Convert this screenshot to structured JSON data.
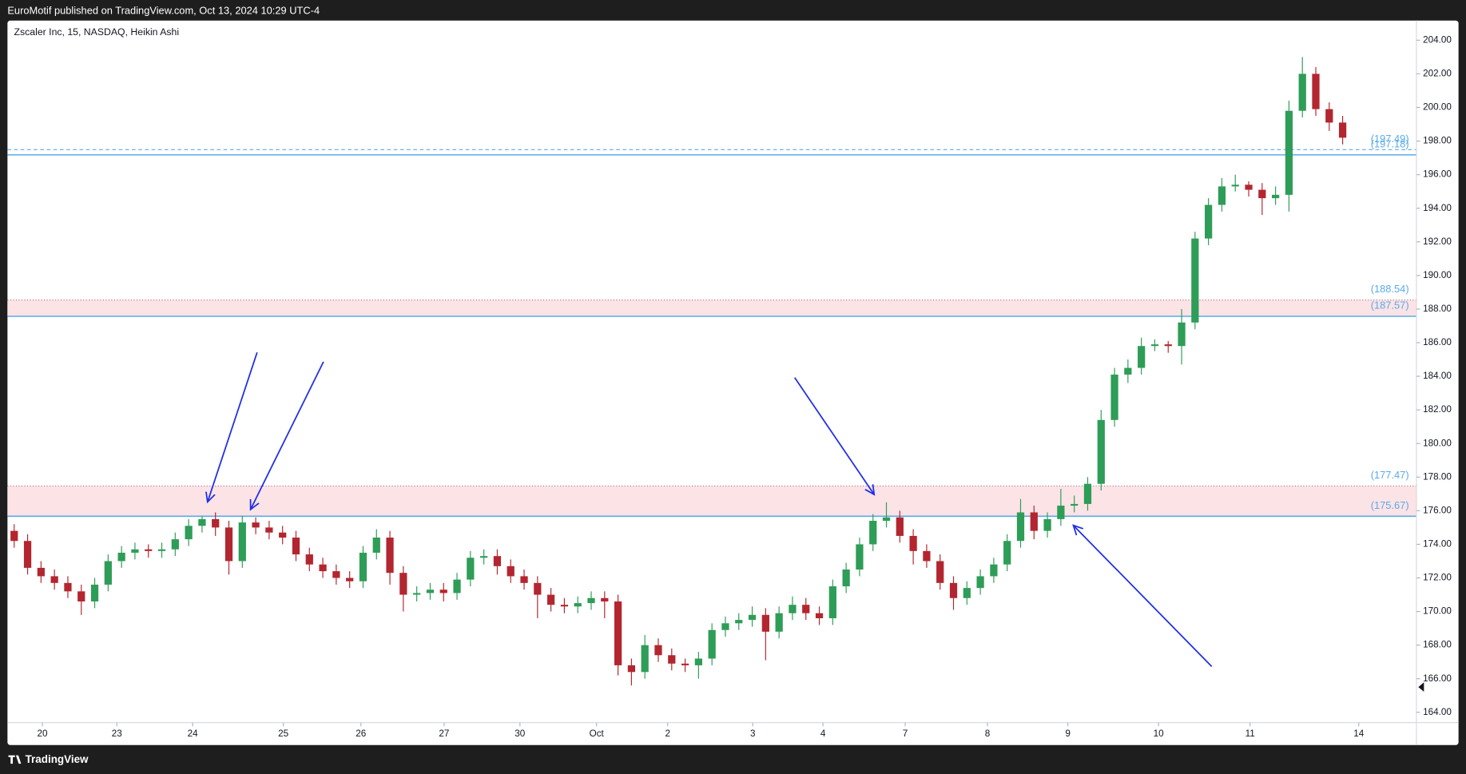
{
  "header": {
    "text": "EuroMotif published on TradingView.com, Oct 13, 2024 10:29 UTC-4"
  },
  "footer": {
    "brand": "TradingView"
  },
  "chart_data": {
    "type": "candlestick",
    "title": "Zscaler Inc, 15, NASDAQ, Heikin Ashi",
    "xlim": [
      0,
      105
    ],
    "xticks": [
      {
        "value": 2.6,
        "label": "20"
      },
      {
        "value": 8.15,
        "label": "23"
      },
      {
        "value": 13.8,
        "label": "24"
      },
      {
        "value": 20.56,
        "label": "25"
      },
      {
        "value": 26.34,
        "label": "26"
      },
      {
        "value": 32.54,
        "label": "27"
      },
      {
        "value": 38.19,
        "label": "30"
      },
      {
        "value": 43.9,
        "label": "Oct"
      },
      {
        "value": 49.2,
        "label": "2"
      },
      {
        "value": 55.54,
        "label": "3"
      },
      {
        "value": 60.77,
        "label": "4"
      },
      {
        "value": 66.9,
        "label": "7"
      },
      {
        "value": 73.03,
        "label": "8"
      },
      {
        "value": 79.02,
        "label": "9"
      },
      {
        "value": 85.78,
        "label": "10"
      },
      {
        "value": 92.6,
        "label": "11"
      },
      {
        "value": 100.7,
        "label": "14"
      }
    ],
    "ylim": [
      163.39,
      205.17
    ],
    "yticks": [
      {
        "value": 164,
        "label": "164.00"
      },
      {
        "value": 166,
        "label": "166.00"
      },
      {
        "value": 168,
        "label": "168.00"
      },
      {
        "value": 170,
        "label": "170.00"
      },
      {
        "value": 172,
        "label": "172.00"
      },
      {
        "value": 174,
        "label": "174.00"
      },
      {
        "value": 176,
        "label": "176.00"
      },
      {
        "value": 178,
        "label": "178.00"
      },
      {
        "value": 180,
        "label": "180.00"
      },
      {
        "value": 182,
        "label": "182.00"
      },
      {
        "value": 184,
        "label": "184.00"
      },
      {
        "value": 186,
        "label": "186.00"
      },
      {
        "value": 188,
        "label": "188.00"
      },
      {
        "value": 190,
        "label": "190.00"
      },
      {
        "value": 192,
        "label": "192.00"
      },
      {
        "value": 194,
        "label": "194.00"
      },
      {
        "value": 196,
        "label": "196.00"
      },
      {
        "value": 198,
        "label": "198.00"
      },
      {
        "value": 200,
        "label": "200.00"
      },
      {
        "value": 202,
        "label": "202.00"
      },
      {
        "value": 204,
        "label": "204.00"
      }
    ],
    "grid": false,
    "up_color": "#2e9d57",
    "down_color": "#b3262f",
    "open": [
      174.8,
      174.2,
      172.6,
      172.1,
      171.7,
      171.2,
      170.6,
      171.6,
      173.0,
      173.5,
      173.7,
      173.6,
      173.7,
      174.3,
      175.1,
      175.5,
      175.0,
      173.0,
      175.3,
      175.0,
      174.7,
      174.4,
      173.4,
      172.8,
      172.4,
      172.0,
      171.8,
      173.5,
      174.4,
      172.3,
      171.0,
      171.1,
      171.3,
      171.1,
      171.9,
      173.2,
      173.3,
      172.7,
      172.1,
      171.7,
      171.0,
      170.4,
      170.3,
      170.5,
      170.8,
      170.6,
      166.8,
      166.4,
      168.0,
      167.4,
      166.9,
      166.8,
      167.2,
      168.9,
      169.3,
      169.5,
      169.8,
      168.8,
      169.9,
      170.4,
      169.9,
      169.6,
      171.5,
      172.5,
      174.0,
      175.4,
      175.6,
      174.5,
      173.6,
      173.0,
      171.7,
      170.8,
      171.4,
      172.1,
      172.8,
      174.2,
      175.9,
      174.8,
      175.5,
      176.3,
      176.4,
      177.6,
      181.4,
      184.1,
      184.5,
      185.8,
      185.9,
      185.8,
      187.2,
      192.2,
      194.2,
      195.3,
      195.4,
      195.1,
      194.6,
      194.8,
      199.8,
      202.0,
      199.9,
      199.1
    ],
    "high": [
      175.2,
      174.6,
      173.0,
      172.5,
      172.1,
      171.6,
      172.0,
      173.4,
      173.9,
      174.1,
      174.0,
      174.1,
      174.7,
      175.5,
      175.7,
      175.9,
      175.4,
      175.7,
      175.6,
      175.4,
      175.1,
      174.8,
      173.8,
      173.2,
      172.8,
      172.4,
      173.9,
      174.9,
      174.8,
      172.7,
      171.5,
      171.7,
      171.7,
      172.3,
      173.6,
      173.7,
      173.7,
      173.1,
      172.5,
      172.1,
      171.4,
      170.8,
      170.9,
      171.2,
      171.2,
      171.0,
      167.2,
      168.6,
      168.4,
      167.8,
      167.2,
      167.6,
      169.3,
      169.7,
      169.9,
      170.3,
      170.2,
      170.3,
      170.9,
      170.8,
      170.3,
      171.9,
      172.9,
      174.4,
      175.8,
      176.5,
      176.0,
      174.9,
      174.0,
      173.4,
      172.1,
      171.8,
      172.5,
      173.2,
      174.6,
      176.7,
      176.3,
      175.9,
      177.3,
      176.9,
      178.0,
      182.0,
      184.5,
      185.0,
      186.3,
      186.2,
      186.1,
      188.0,
      192.6,
      194.6,
      195.8,
      196.0,
      195.6,
      195.5,
      195.3,
      200.4,
      203.0,
      202.4,
      200.3,
      199.5
    ],
    "low": [
      173.8,
      172.2,
      171.7,
      171.3,
      170.8,
      169.8,
      170.2,
      171.2,
      172.6,
      173.1,
      173.2,
      173.2,
      173.3,
      173.9,
      174.7,
      174.5,
      172.2,
      172.6,
      174.6,
      174.3,
      174.0,
      173.0,
      172.4,
      172.0,
      171.6,
      171.4,
      171.4,
      173.1,
      171.6,
      170.0,
      170.6,
      170.7,
      170.6,
      170.7,
      171.5,
      172.8,
      172.2,
      171.7,
      171.3,
      169.6,
      170.0,
      169.9,
      169.9,
      170.1,
      169.6,
      166.2,
      165.6,
      166.0,
      167.0,
      166.5,
      166.4,
      166.0,
      166.8,
      168.5,
      168.9,
      169.1,
      167.1,
      168.4,
      169.5,
      169.5,
      169.2,
      169.2,
      171.1,
      172.1,
      173.6,
      175.0,
      174.1,
      172.8,
      172.6,
      171.3,
      170.1,
      170.4,
      171.0,
      171.7,
      172.4,
      173.8,
      174.3,
      174.4,
      175.1,
      175.9,
      176.0,
      177.2,
      181.0,
      183.6,
      184.1,
      185.5,
      185.4,
      184.7,
      186.8,
      191.8,
      193.8,
      195.0,
      194.7,
      193.6,
      194.2,
      193.8,
      199.4,
      199.5,
      198.6,
      197.8
    ],
    "close": [
      174.2,
      172.6,
      172.1,
      171.7,
      171.2,
      170.6,
      171.6,
      173.0,
      173.5,
      173.7,
      173.6,
      173.7,
      174.3,
      175.1,
      175.5,
      175.0,
      173.0,
      175.3,
      175.0,
      174.7,
      174.4,
      173.4,
      172.8,
      172.4,
      172.0,
      171.8,
      173.5,
      174.4,
      172.3,
      171.0,
      171.1,
      171.3,
      171.1,
      171.9,
      173.2,
      173.3,
      172.7,
      172.1,
      171.7,
      171.0,
      170.4,
      170.3,
      170.5,
      170.8,
      170.6,
      166.8,
      166.4,
      168.0,
      167.4,
      166.9,
      166.8,
      167.2,
      168.9,
      169.3,
      169.5,
      169.8,
      168.8,
      169.9,
      170.4,
      169.9,
      169.6,
      171.5,
      172.5,
      174.0,
      175.4,
      175.6,
      174.5,
      173.6,
      173.0,
      171.7,
      170.8,
      171.4,
      172.1,
      172.8,
      174.2,
      175.9,
      174.8,
      175.5,
      176.3,
      176.4,
      177.6,
      181.4,
      184.1,
      184.5,
      185.8,
      185.9,
      185.8,
      187.2,
      192.2,
      194.2,
      195.3,
      195.4,
      195.1,
      194.6,
      194.8,
      199.8,
      202.0,
      199.9,
      199.1,
      198.2
    ],
    "level_color": "#5aabeb",
    "zone_color": "#fbe3e6",
    "zone_edge_color": "#b5707c",
    "lines": [
      {
        "value": 197.49,
        "label": "(197.49)",
        "style": "dashed"
      },
      {
        "value": 197.18,
        "label": "(197.18)",
        "style": "solid"
      }
    ],
    "zones": [
      {
        "low": {
          "value": 187.57,
          "label": "(187.57)"
        },
        "high": {
          "value": 188.54,
          "label": "(188.54)"
        }
      },
      {
        "low": {
          "value": 175.67,
          "label": "(175.67)"
        },
        "high": {
          "value": 177.47,
          "label": "(177.47)"
        }
      }
    ]
  }
}
